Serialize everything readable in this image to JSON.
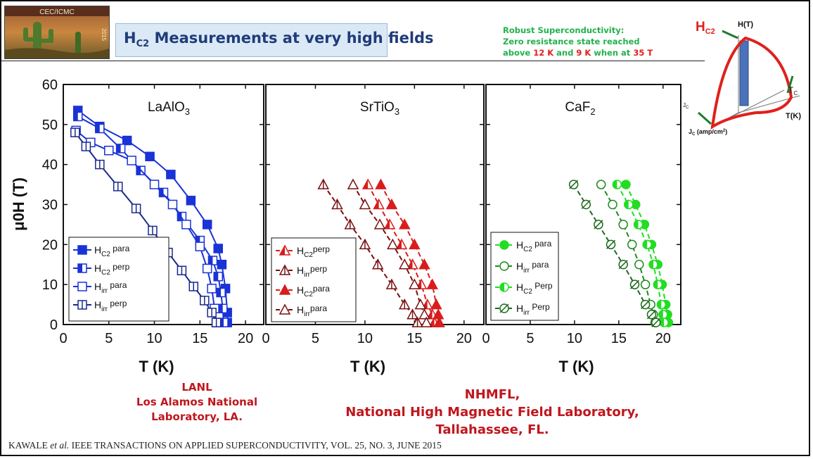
{
  "logo": {
    "top_text": "CEC/ICMC",
    "year": "2015"
  },
  "slide_title": {
    "main": "H",
    "sub": "C2",
    "rest": " Measurements at very high fields"
  },
  "note": {
    "line1": "Robust Superconductivity:",
    "line2": "Zero resistance state reached",
    "line3_a": "above ",
    "line3_b": "12 K",
    "line3_c": " and ",
    "line3_d": "9 K",
    "line3_e": " when at ",
    "line3_f": "35 T"
  },
  "diagram": {
    "hc2_main": "H",
    "hc2_sub": "C2",
    "ht_label": "H(T)",
    "tc_main": "T",
    "tc_sub": "C",
    "tk_label": "T(K)",
    "jc_axis_main": "J",
    "jc_axis_sub": "C",
    "jc_label_main": "J",
    "jc_label_sub": "C",
    "jc_label_rest": " (amp/cm",
    "jc_label_sup": "2",
    "jc_label_end": ")",
    "colors": {
      "curve": "#e0201c",
      "arrow": "#1e7a2e",
      "bar": "#4a72b8"
    }
  },
  "institutions": {
    "lanl": [
      "LANL",
      "Los Alamos National",
      "Laboratory,  LA."
    ],
    "nhmfl": [
      "NHMFL,",
      "National High Magnetic Field Laboratory,",
      "Tallahassee, FL."
    ]
  },
  "citation": {
    "authors": "KAWALE ",
    "etal": "et al.",
    "journal": "  IEEE TRANSACTIONS ON APPLIED SUPERCONDUCTIVITY, VOL. 25, NO. 3, JUNE 2015"
  },
  "axes": {
    "ylabel": "μ0H (T)",
    "xlabel": "T (K)",
    "y_ticks": [
      "0",
      "10",
      "20",
      "30",
      "40",
      "50",
      "60"
    ],
    "x_ticks": [
      "0",
      "5",
      "10",
      "15",
      "20"
    ]
  },
  "chart_data": [
    {
      "type": "line",
      "title": {
        "main": "LaAlO",
        "sub": "3"
      },
      "xlim": [
        0,
        22
      ],
      "ylim": [
        0,
        60
      ],
      "series": [
        {
          "name": {
            "main": "H",
            "sub": "C2",
            "rest": " para"
          },
          "color": "#1933d6",
          "marker": "square-filled",
          "x": [
            1.6,
            4.0,
            7.0,
            9.5,
            11.8,
            14.0,
            15.8,
            17.0,
            17.4,
            17.8,
            18.0,
            18.0
          ],
          "y": [
            53.5,
            49.5,
            46.0,
            42.0,
            37.5,
            31.0,
            25.0,
            19.0,
            15.0,
            9.0,
            3.0,
            0.5
          ]
        },
        {
          "name": {
            "main": "H",
            "sub": "C2",
            "rest": " perp"
          },
          "color": "#1933d6",
          "marker": "square-half",
          "x": [
            1.6,
            4.0,
            6.3,
            8.5,
            11.0,
            13.0,
            15.0,
            16.4,
            17.0,
            17.3,
            17.5,
            17.6
          ],
          "y": [
            52.0,
            49.0,
            44.0,
            38.5,
            33.0,
            27.0,
            21.0,
            16.0,
            12.0,
            8.0,
            4.0,
            0.5
          ]
        },
        {
          "name": {
            "main": "H",
            "sub": "irr",
            "rest": " para"
          },
          "color": "#1933d6",
          "marker": "square-open",
          "x": [
            1.4,
            3.0,
            5.0,
            7.5,
            10.0,
            12.0,
            13.5,
            15.0,
            15.8,
            16.3,
            16.6,
            16.8
          ],
          "y": [
            48.5,
            45.5,
            43.5,
            41.0,
            35.0,
            30.0,
            25.0,
            19.5,
            14.0,
            9.0,
            4.0,
            0.5
          ]
        },
        {
          "name": {
            "main": "H",
            "sub": "irr",
            "rest": " perp"
          },
          "color": "#1a2a8c",
          "marker": "square-cross",
          "x": [
            1.3,
            2.5,
            4.0,
            6.0,
            8.0,
            9.8,
            11.5,
            13.0,
            14.3,
            15.5,
            16.3,
            16.8
          ],
          "y": [
            48.0,
            44.5,
            40.0,
            34.5,
            29.0,
            23.5,
            18.0,
            13.5,
            9.5,
            6.0,
            3.0,
            0.5
          ]
        }
      ]
    },
    {
      "type": "line",
      "title": {
        "main": "SrTiO",
        "sub": "3"
      },
      "xlim": [
        0,
        22
      ],
      "ylim": [
        0,
        60
      ],
      "series": [
        {
          "name": {
            "main": "H",
            "sub": "C2",
            "rest": "perp"
          },
          "color": "#d91c1c",
          "marker": "triangle-half",
          "x": [
            10.3,
            11.4,
            12.5,
            13.7,
            14.8,
            15.7,
            16.3,
            16.8,
            17.0
          ],
          "y": [
            35,
            30,
            25,
            20,
            15,
            10,
            5,
            2.5,
            0.5
          ]
        },
        {
          "name": {
            "main": "H",
            "sub": "irr",
            "rest": "perp"
          },
          "color": "#7a1010",
          "marker": "triangle-cross",
          "x": [
            5.8,
            7.2,
            8.5,
            10.0,
            11.3,
            12.7,
            14.0,
            14.8,
            15.3
          ],
          "y": [
            35,
            30,
            25,
            20,
            15,
            10,
            5,
            2.5,
            0.5
          ]
        },
        {
          "name": {
            "main": "H",
            "sub": "C2",
            "rest": "para"
          },
          "color": "#d91c1c",
          "marker": "triangle-filled",
          "x": [
            11.6,
            12.7,
            14.0,
            15.0,
            16.0,
            16.8,
            17.2,
            17.4,
            17.5
          ],
          "y": [
            35,
            30,
            25,
            20,
            15,
            10,
            5,
            2.5,
            0.5
          ]
        },
        {
          "name": {
            "main": "H",
            "sub": "irr",
            "rest": "para"
          },
          "color": "#7a1010",
          "marker": "triangle-open",
          "x": [
            8.8,
            10.0,
            11.5,
            12.8,
            14.0,
            15.0,
            15.6,
            16.0,
            16.2
          ],
          "y": [
            35,
            30,
            25,
            20,
            15,
            10,
            5,
            2.5,
            0.5
          ]
        }
      ]
    },
    {
      "type": "line",
      "title": {
        "main": "CaF",
        "sub": "2"
      },
      "xlim": [
        0,
        22
      ],
      "ylim": [
        0,
        60
      ],
      "series": [
        {
          "name": {
            "main": "H",
            "sub": "C2",
            "rest": " para"
          },
          "color": "#22dd22",
          "marker": "circle-filled",
          "x": [
            15.8,
            16.9,
            17.9,
            18.7,
            19.4,
            19.9,
            20.3,
            20.5,
            20.6
          ],
          "y": [
            35,
            30,
            25,
            20,
            15,
            10,
            5,
            2.5,
            0.5
          ]
        },
        {
          "name": {
            "main": "H",
            "sub": "irr",
            "rest": " para"
          },
          "color": "#1e8a1e",
          "marker": "circle-open",
          "x": [
            13.0,
            14.3,
            15.5,
            16.5,
            17.3,
            18.0,
            18.6,
            18.9,
            19.1
          ],
          "y": [
            35,
            30,
            25,
            20,
            15,
            10,
            5,
            2.5,
            0.5
          ]
        },
        {
          "name": {
            "main": "H",
            "sub": "C2",
            "rest": " Perp"
          },
          "color": "#22dd22",
          "marker": "circle-half",
          "x": [
            14.8,
            16.1,
            17.2,
            18.2,
            18.9,
            19.4,
            19.8,
            20.0,
            20.1
          ],
          "y": [
            35,
            30,
            25,
            20,
            15,
            10,
            5,
            2.5,
            0.5
          ]
        },
        {
          "name": {
            "main": "H",
            "sub": "irr",
            "rest": " Perp"
          },
          "color": "#1e6a1e",
          "marker": "circle-cross",
          "x": [
            9.9,
            11.3,
            12.7,
            14.1,
            15.5,
            16.8,
            18.0,
            18.7,
            19.2
          ],
          "y": [
            35,
            30,
            25,
            20,
            15,
            10,
            5,
            2.5,
            0.5
          ]
        }
      ]
    }
  ]
}
